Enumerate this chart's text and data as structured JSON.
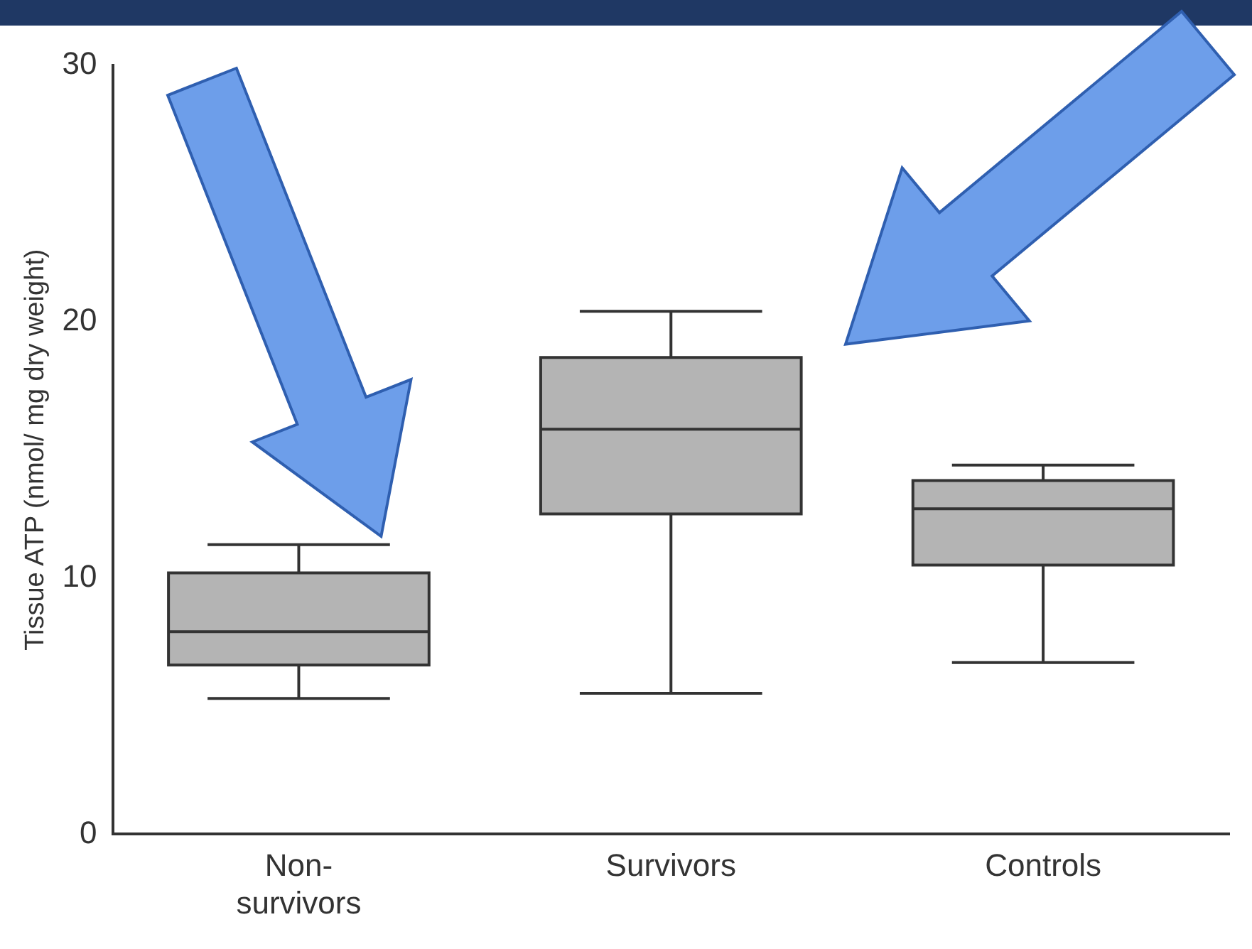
{
  "chart_data": {
    "type": "box",
    "ylabel": "Tissue ATP (nmol/ mg dry weight)",
    "categories": [
      "Non-survivors",
      "Survivors",
      "Controls"
    ],
    "boxes": [
      {
        "low": 5.3,
        "q1": 6.6,
        "median": 7.9,
        "q3": 10.2,
        "high": 11.3
      },
      {
        "low": 5.5,
        "q1": 12.5,
        "median": 15.8,
        "q3": 18.6,
        "high": 20.4
      },
      {
        "low": 6.7,
        "q1": 10.5,
        "median": 12.7,
        "q3": 13.8,
        "high": 14.4
      }
    ],
    "color": "#b4b4b4",
    "ylim": [
      0,
      30
    ],
    "yticks": [
      0,
      10,
      20,
      30
    ],
    "grid": false,
    "legend": false
  }
}
